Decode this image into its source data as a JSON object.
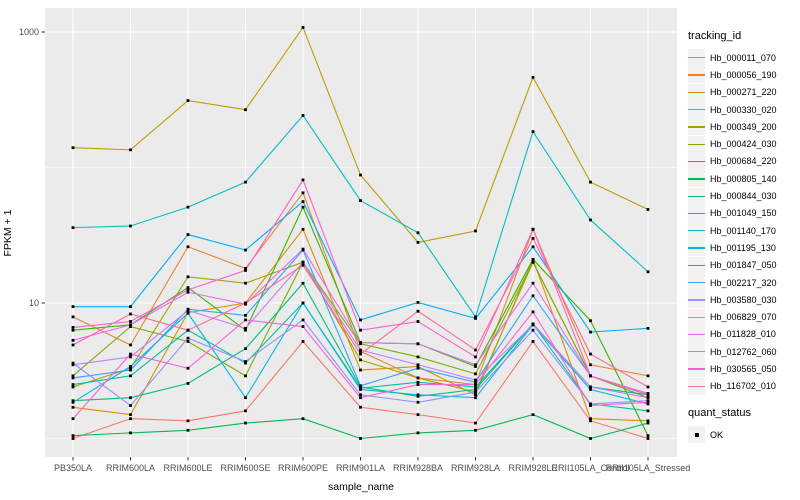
{
  "figure": {
    "background": "#FFFFFF",
    "panel_bg": "#EBEBEB",
    "grid_color": "#FFFFFF",
    "point_color": "#000000",
    "tick_text_color": "#4D4D4D",
    "title_text_color": "#000000"
  },
  "y_axis": {
    "title": "FPKM + 1",
    "scale": "log10",
    "tick_labels": [
      "1000",
      "10"
    ],
    "tick_values": [
      1000,
      10
    ],
    "minor_gridline_values": [
      100,
      1
    ]
  },
  "x_axis": {
    "title": "sample_name"
  },
  "legend": {
    "tracking_title": "tracking_id",
    "quant_title": "quant_status",
    "quant_items": [
      {
        "label": "OK",
        "shape": "black-square"
      }
    ]
  },
  "chart_data": {
    "type": "line",
    "title": "",
    "xlabel": "sample_name",
    "ylabel": "FPKM + 1",
    "y_scale": "log10",
    "ylim": [
      0.9,
      1500
    ],
    "grid": true,
    "legend_position": "right",
    "point_marker": "black-square",
    "categories": [
      "PB350LA",
      "RRIM600LA",
      "RRIM600LE",
      "RRIM600SE",
      "RRIM600PE",
      "RRIM901LA",
      "RRIM928BA",
      "RRIM928LA",
      "RRIM928LE",
      "RRII105LA_Control",
      "RRII105LA_Stressed"
    ],
    "series": [
      {
        "name": "Hb_000011_070",
        "color": "#F8766D",
        "values": [
          1.0,
          1.4,
          1.35,
          1.6,
          5.2,
          1.7,
          1.5,
          1.3,
          5.2,
          1.35,
          1.0
        ]
      },
      {
        "name": "Hb_000056_190",
        "color": "#EA8331",
        "values": [
          7.9,
          4.9,
          26,
          18,
          65,
          4.4,
          2.8,
          2.5,
          35,
          3.5,
          2.9
        ]
      },
      {
        "name": "Hb_000271_220",
        "color": "#D89000",
        "values": [
          1.7,
          1.5,
          8.5,
          10,
          35,
          3.2,
          3.4,
          2.1,
          21,
          1.4,
          1.35
        ]
      },
      {
        "name": "Hb_000330_020",
        "color": "#C09B00",
        "values": [
          140,
          135,
          312,
          267,
          1080,
          88,
          28,
          34,
          463,
          78,
          49
        ]
      },
      {
        "name": "Hb_000349_200",
        "color": "#A3A500",
        "values": [
          2.4,
          3.3,
          15.6,
          14,
          20,
          3.8,
          2.8,
          2.2,
          20,
          2.9,
          2.1
        ]
      },
      {
        "name": "Hb_000424_030",
        "color": "#7CAE00",
        "values": [
          2.9,
          6.7,
          5.2,
          2.9,
          20,
          5.0,
          4.0,
          3.0,
          20,
          2.9,
          2.0
        ]
      },
      {
        "name": "Hb_000684_220",
        "color": "#39B600",
        "values": [
          6.3,
          6.9,
          13,
          6.3,
          51,
          5.1,
          5.0,
          3.4,
          21,
          7.4,
          1.05
        ]
      },
      {
        "name": "Hb_000805_140",
        "color": "#00BB4E",
        "values": [
          1.05,
          1.1,
          1.15,
          1.3,
          1.4,
          1.0,
          1.1,
          1.15,
          1.5,
          1.0,
          1.3
        ]
      },
      {
        "name": "Hb_000844_030",
        "color": "#00BF7D",
        "values": [
          1.9,
          2.0,
          2.55,
          4.6,
          14,
          2.4,
          2.05,
          2.3,
          7,
          2.4,
          2.1
        ]
      },
      {
        "name": "Hb_001049_150",
        "color": "#00C1A3",
        "values": [
          2.5,
          2.9,
          6.3,
          3.6,
          10,
          2.35,
          2.6,
          2.4,
          7,
          1.8,
          1.6
        ]
      },
      {
        "name": "Hb_001140_170",
        "color": "#00BFC4",
        "values": [
          36,
          37,
          51,
          78,
          242,
          57,
          33,
          7.9,
          184,
          41,
          17
        ]
      },
      {
        "name": "Hb_001195_130",
        "color": "#00BADE",
        "values": [
          1.85,
          3.4,
          8.4,
          2.0,
          10,
          2.3,
          2.1,
          2.0,
          6.9,
          2.3,
          1.8
        ]
      },
      {
        "name": "Hb_001847_050",
        "color": "#00B0F6",
        "values": [
          9.4,
          9.4,
          32,
          24.6,
          56,
          7.5,
          10.1,
          7.7,
          26,
          6.1,
          6.5
        ]
      },
      {
        "name": "Hb_002217_320",
        "color": "#35A2FF",
        "values": [
          2.8,
          3.2,
          9,
          8.1,
          24.6,
          2.45,
          3.3,
          2.6,
          11.3,
          2.9,
          2.1
        ]
      },
      {
        "name": "Hb_003580_030",
        "color": "#9590FF",
        "values": [
          3.6,
          1.75,
          5.5,
          3.7,
          7.5,
          2.1,
          1.85,
          2.2,
          6.3,
          1.8,
          1.9
        ]
      },
      {
        "name": "Hb_006829_070",
        "color": "#C77CFF",
        "values": [
          3.5,
          4.0,
          8.8,
          6.5,
          20,
          4.5,
          3.5,
          2.7,
          6.9,
          2.4,
          2.0
        ]
      },
      {
        "name": "Hb_011828_010",
        "color": "#E76BF3",
        "values": [
          5.3,
          6.9,
          12,
          9.8,
          25,
          5.1,
          5.0,
          3.5,
          14,
          2.9,
          2.15
        ]
      },
      {
        "name": "Hb_012762_060",
        "color": "#FA62DB",
        "values": [
          1.4,
          4.2,
          3.3,
          7.5,
          6.7,
          2.0,
          2.5,
          2.5,
          8.6,
          1.75,
          1.85
        ]
      },
      {
        "name": "Hb_030565_050",
        "color": "#FF61C9",
        "values": [
          6.6,
          7.3,
          12.5,
          17.4,
          81,
          6.3,
          7.3,
          4.0,
          35,
          2.9,
          2.1
        ]
      },
      {
        "name": "Hb_116702_010",
        "color": "#FF6A98",
        "values": [
          4.9,
          8.3,
          6.3,
          10,
          19,
          4.2,
          8.7,
          4.5,
          30,
          4.2,
          2.4
        ]
      }
    ]
  }
}
